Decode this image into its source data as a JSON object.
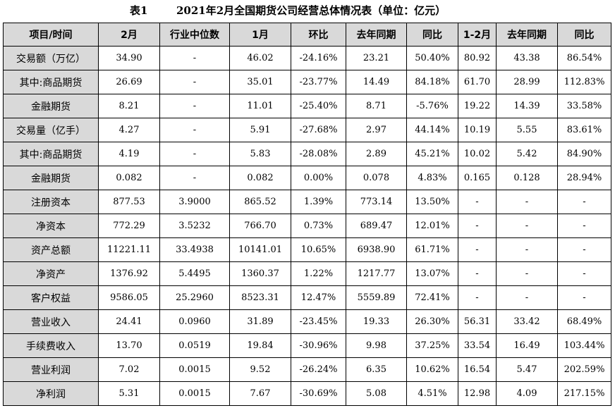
{
  "caption": {
    "label": "表1",
    "title": "2021年2月全国期货公司经营总体情况表（单位：亿元）"
  },
  "colors": {
    "header_bg": "#d9d9d9",
    "first_col_bg": "#d9d9d9",
    "border": "#000000"
  },
  "table": {
    "headers": [
      "项目/时间",
      "2月",
      "行业中位数",
      "1月",
      "环比",
      "去年同期",
      "同比",
      "1-2月",
      "去年同期",
      "同比"
    ],
    "rows": [
      {
        "label": "交易额（万亿）",
        "cells": [
          "34.90",
          "-",
          "46.02",
          "-24.16%",
          "23.21",
          "50.40%",
          "80.92",
          "43.38",
          "86.54%"
        ]
      },
      {
        "label": "其中:商品期货",
        "cells": [
          "26.69",
          "-",
          "35.01",
          "-23.77%",
          "14.49",
          "84.18%",
          "61.70",
          "28.99",
          "112.83%"
        ]
      },
      {
        "label": "金融期货",
        "cells": [
          "8.21",
          "-",
          "11.01",
          "-25.40%",
          "8.71",
          "-5.76%",
          "19.22",
          "14.39",
          "33.58%"
        ]
      },
      {
        "label": "交易量（亿手）",
        "cells": [
          "4.27",
          "-",
          "5.91",
          "-27.68%",
          "2.97",
          "44.14%",
          "10.19",
          "5.55",
          "83.61%"
        ]
      },
      {
        "label": "其中:商品期货",
        "cells": [
          "4.19",
          "-",
          "5.83",
          "-28.08%",
          "2.89",
          "45.21%",
          "10.02",
          "5.42",
          "84.90%"
        ]
      },
      {
        "label": "金融期货",
        "cells": [
          "0.082",
          "-",
          "0.082",
          "0.00%",
          "0.078",
          "4.83%",
          "0.165",
          "0.128",
          "28.94%"
        ]
      },
      {
        "label": "注册资本",
        "cells": [
          "877.53",
          "3.9000",
          "865.52",
          "1.39%",
          "773.14",
          "13.50%",
          "-",
          "-",
          "-"
        ]
      },
      {
        "label": "净资本",
        "cells": [
          "772.29",
          "3.5232",
          "766.70",
          "0.73%",
          "689.47",
          "12.01%",
          "-",
          "-",
          "-"
        ]
      },
      {
        "label": "资产总额",
        "cells": [
          "11221.11",
          "33.4938",
          "10141.01",
          "10.65%",
          "6938.90",
          "61.71%",
          "-",
          "-",
          "-"
        ]
      },
      {
        "label": "净资产",
        "cells": [
          "1376.92",
          "5.4495",
          "1360.37",
          "1.22%",
          "1217.77",
          "13.07%",
          "-",
          "-",
          "-"
        ]
      },
      {
        "label": "客户权益",
        "cells": [
          "9586.05",
          "25.2960",
          "8523.31",
          "12.47%",
          "5559.89",
          "72.41%",
          "-",
          "-",
          "-"
        ]
      },
      {
        "label": "营业收入",
        "cells": [
          "24.41",
          "0.0960",
          "31.89",
          "-23.45%",
          "19.33",
          "26.30%",
          "56.31",
          "33.42",
          "68.49%"
        ]
      },
      {
        "label": "手续费收入",
        "cells": [
          "13.70",
          "0.0519",
          "19.84",
          "-30.96%",
          "9.98",
          "37.25%",
          "33.54",
          "16.49",
          "103.44%"
        ]
      },
      {
        "label": "营业利润",
        "cells": [
          "7.02",
          "0.0015",
          "9.52",
          "-26.24%",
          "6.35",
          "10.62%",
          "16.54",
          "5.47",
          "202.59%"
        ]
      },
      {
        "label": "净利润",
        "cells": [
          "5.31",
          "0.0015",
          "7.67",
          "-30.69%",
          "5.08",
          "4.51%",
          "12.98",
          "4.09",
          "217.15%"
        ]
      }
    ]
  }
}
